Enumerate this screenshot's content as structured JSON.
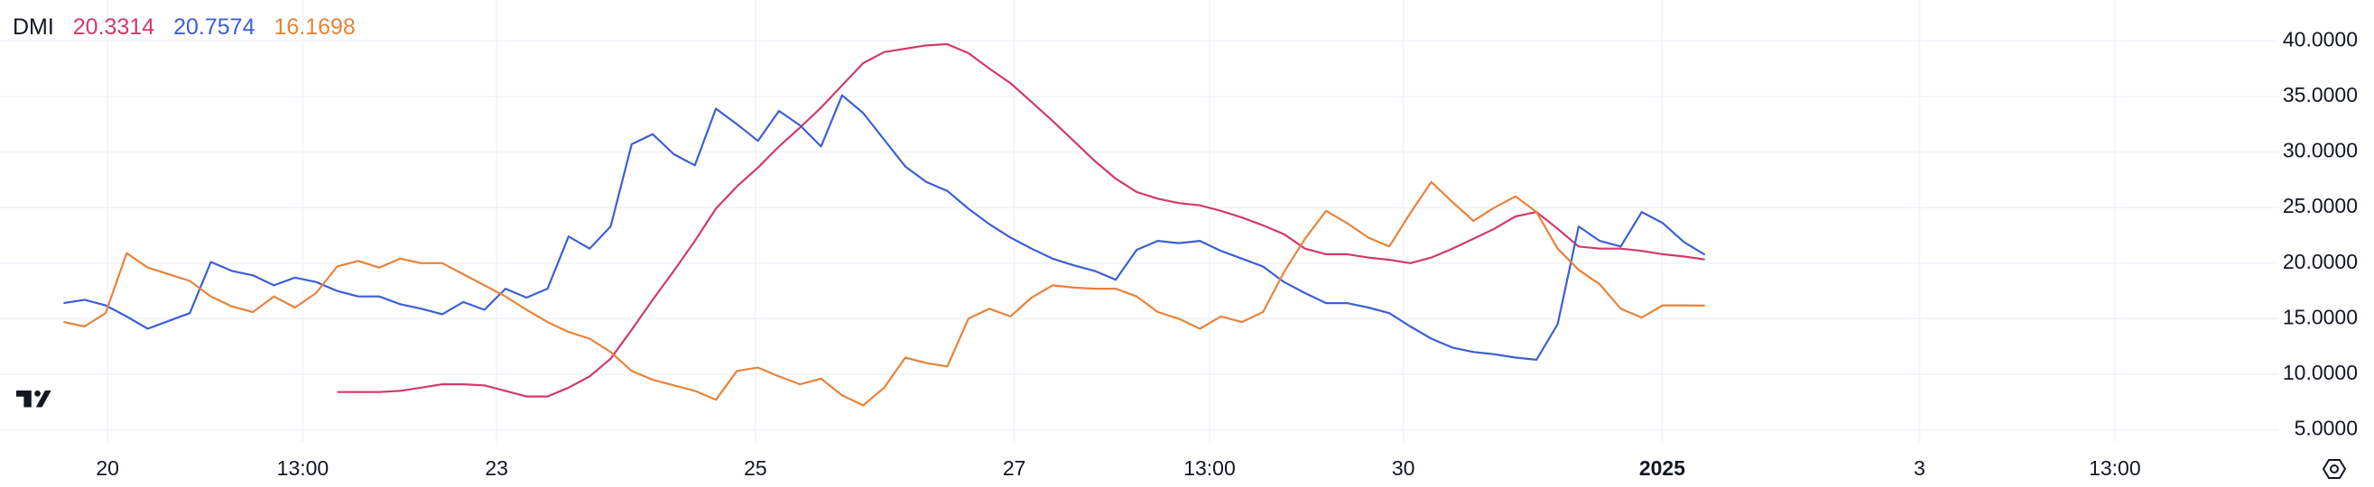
{
  "chart_data": {
    "type": "line",
    "title": "DMI",
    "xlim": [
      -3.02,
      105.25
    ],
    "xticks": [
      {
        "value": 2.09,
        "label": "20"
      },
      {
        "value": 11.37,
        "label": "13:00"
      },
      {
        "value": 20.58,
        "label": "23"
      },
      {
        "value": 32.88,
        "label": "25"
      },
      {
        "value": 45.18,
        "label": "27"
      },
      {
        "value": 54.46,
        "label": "13:00"
      },
      {
        "value": 63.67,
        "label": "30"
      },
      {
        "value": 75.97,
        "label": "2025"
      },
      {
        "value": 88.2,
        "label": "3"
      },
      {
        "value": 97.48,
        "label": "13:00"
      }
    ],
    "ylim": [
      3.91,
      43.68
    ],
    "yticks": [
      {
        "value": 5,
        "label": "5.0000"
      },
      {
        "value": 10,
        "label": "10.0000"
      },
      {
        "value": 15,
        "label": "15.0000"
      },
      {
        "value": 20,
        "label": "20.0000"
      },
      {
        "value": 25,
        "label": "25.0000"
      },
      {
        "value": 30,
        "label": "30.0000"
      },
      {
        "value": 35,
        "label": "35.0000"
      },
      {
        "value": 40,
        "label": "40.0000"
      }
    ],
    "grid": true,
    "series": [
      {
        "color": "#d13a6b",
        "values": [
          null,
          null,
          null,
          null,
          null,
          null,
          null,
          null,
          null,
          null,
          null,
          null,
          null,
          8.4,
          8.4,
          8.4,
          8.5,
          8.8,
          9.1,
          9.1,
          9,
          8.5,
          8,
          8,
          8.8,
          9.8,
          11.4,
          14,
          16.7,
          19.3,
          22,
          24.9,
          26.9,
          28.6,
          30.5,
          32.2,
          34,
          36,
          38,
          39,
          39.3,
          39.6,
          39.7,
          38.9,
          37.5,
          36.2,
          34.5,
          32.8,
          31,
          29.2,
          27.6,
          26.4,
          25.8,
          25.4,
          25.2,
          24.7,
          24.1,
          23.4,
          22.6,
          21.3,
          20.8,
          20.8,
          20.5,
          20.3,
          20,
          20.5,
          21.3,
          22.2,
          23.1,
          24.2,
          24.6,
          23.1,
          21.5,
          21.3,
          21.3,
          21.1,
          20.8,
          20.6,
          20.3314
        ]
      },
      {
        "color": "#3b5fd6",
        "values": [
          16.4,
          16.7,
          16.2,
          15.2,
          14.1,
          14.8,
          15.5,
          20.1,
          19.3,
          18.9,
          18,
          18.7,
          18.3,
          17.5,
          17,
          17,
          16.3,
          15.9,
          15.4,
          16.5,
          15.8,
          17.7,
          16.9,
          17.7,
          22.4,
          21.3,
          23.3,
          30.7,
          31.6,
          29.8,
          28.8,
          33.9,
          32.5,
          31,
          33.7,
          32.4,
          30.5,
          35.1,
          33.5,
          31.1,
          28.7,
          27.3,
          26.5,
          24.9,
          23.5,
          22.3,
          21.3,
          20.4,
          19.8,
          19.3,
          18.5,
          21.2,
          22,
          21.8,
          22,
          21.1,
          20.4,
          19.7,
          18.3,
          17.3,
          16.4,
          16.4,
          16,
          15.5,
          14.3,
          13.2,
          12.4,
          12,
          11.8,
          11.5,
          11.3,
          14.5,
          23.3,
          22,
          21.5,
          24.6,
          23.6,
          21.9,
          20.7574
        ]
      },
      {
        "color": "#e8833a",
        "values": [
          14.7,
          14.3,
          15.5,
          20.9,
          19.6,
          19,
          18.4,
          17,
          16.1,
          15.6,
          17,
          16,
          17.3,
          19.7,
          20.2,
          19.6,
          20.4,
          20,
          20,
          19,
          18,
          17,
          15.8,
          14.7,
          13.8,
          13.2,
          12,
          10.3,
          9.5,
          9,
          8.5,
          7.7,
          10.3,
          10.6,
          9.8,
          9.1,
          9.6,
          8.1,
          7.2,
          8.8,
          11.5,
          11,
          10.7,
          15,
          15.9,
          15.2,
          16.9,
          18,
          17.8,
          17.7,
          17.7,
          17,
          15.6,
          15,
          14.1,
          15.2,
          14.7,
          15.6,
          19.2,
          22.2,
          24.7,
          23.6,
          22.3,
          21.5,
          24.5,
          27.3,
          25.5,
          23.8,
          25,
          26,
          24.6,
          21.3,
          19.4,
          18.1,
          15.9,
          15.1,
          16.2,
          16.2,
          16.1698
        ]
      }
    ]
  }
}
